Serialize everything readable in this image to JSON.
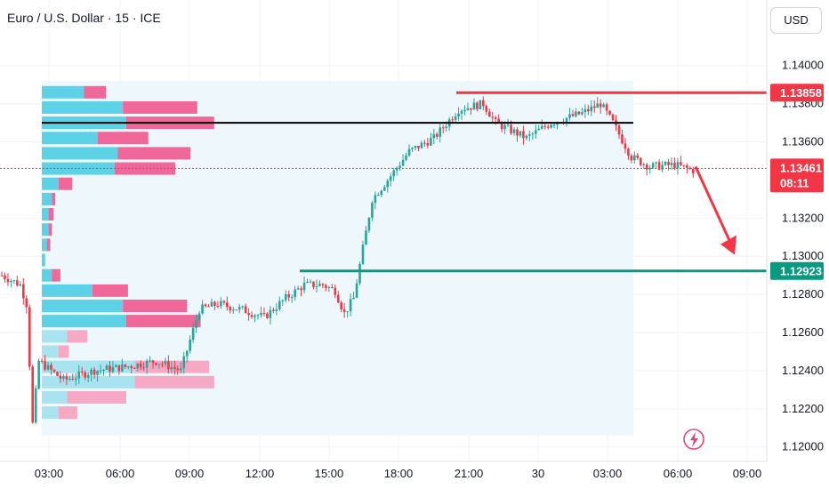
{
  "header": {
    "title": "Euro / U.S. Dollar · 15 · ICE",
    "currency": "USD"
  },
  "colors": {
    "up": "#26a69a",
    "down": "#f23645",
    "resistance": "#f23645",
    "support": "#089981",
    "pivot": "#000000",
    "arrow": "#f23645",
    "vp_up": "#5dd2e6",
    "vp_down": "#f0679a",
    "vp_up_light": "#a9e3ef",
    "vp_down_light": "#f6a9c4",
    "range_bg": "#eef8fc"
  },
  "icons": {
    "replay": "lightning-icon"
  },
  "chart_data": {
    "type": "candlestick",
    "symbol": "EURUSD",
    "timeframe": "15",
    "x_ticks": [
      "03:00",
      "06:00",
      "09:00",
      "12:00",
      "15:00",
      "18:00",
      "21:00",
      "30",
      "03:00",
      "06:00",
      "09:00"
    ],
    "y_ticks": [
      "1.14000",
      "1.13800",
      "1.13600",
      "1.13200",
      "1.13000",
      "1.12800",
      "1.12600",
      "1.12400",
      "1.12200",
      "1.12000"
    ],
    "ylim": [
      1.1198,
      1.1412
    ],
    "current_price": {
      "value": "1.13461",
      "countdown": "08:11"
    },
    "levels": [
      {
        "name": "resistance",
        "value": "1.13858",
        "price": 1.13858
      },
      {
        "name": "support",
        "value": "1.12923",
        "price": 1.12923
      },
      {
        "name": "pivot",
        "price": 1.137
      }
    ],
    "projection": {
      "from_price": 1.13461,
      "to_price": 1.1297
    },
    "volume_profile": {
      "price_range": [
        1.1209,
        1.1389
      ],
      "rows": [
        {
          "price": 1.1386,
          "up": 0.25,
          "down": 0.13
        },
        {
          "price": 1.1378,
          "up": 0.48,
          "down": 0.44
        },
        {
          "price": 1.137,
          "up": 0.5,
          "down": 0.52
        },
        {
          "price": 1.1362,
          "up": 0.33,
          "down": 0.3
        },
        {
          "price": 1.1354,
          "up": 0.45,
          "down": 0.43
        },
        {
          "price": 1.1346,
          "up": 0.43,
          "down": 0.36
        },
        {
          "price": 1.1338,
          "up": 0.1,
          "down": 0.08
        },
        {
          "price": 1.133,
          "up": 0.06,
          "down": 0.02
        },
        {
          "price": 1.1322,
          "up": 0.04,
          "down": 0.03
        },
        {
          "price": 1.1314,
          "up": 0.04,
          "down": 0.02
        },
        {
          "price": 1.1306,
          "up": 0.03,
          "down": 0.02
        },
        {
          "price": 1.1298,
          "up": 0.02,
          "down": 0.0
        },
        {
          "price": 1.129,
          "up": 0.06,
          "down": 0.05
        },
        {
          "price": 1.1282,
          "up": 0.3,
          "down": 0.21
        },
        {
          "price": 1.1274,
          "up": 0.48,
          "down": 0.38
        },
        {
          "price": 1.1266,
          "up": 0.5,
          "down": 0.44
        },
        {
          "price": 1.1258,
          "up": 0.15,
          "down": 0.12
        },
        {
          "price": 1.125,
          "up": 0.1,
          "down": 0.06
        },
        {
          "price": 1.1242,
          "up": 0.55,
          "down": 0.44
        },
        {
          "price": 1.1234,
          "up": 0.55,
          "down": 0.47
        },
        {
          "price": 1.1226,
          "up": 0.15,
          "down": 0.35
        },
        {
          "price": 1.1218,
          "up": 0.1,
          "down": 0.11
        }
      ]
    },
    "candle_path": [
      [
        0,
        1.129
      ],
      [
        6,
        1.1285
      ],
      [
        8,
        1.1275
      ],
      [
        10,
        1.1212
      ],
      [
        12,
        1.1245
      ],
      [
        20,
        1.1235
      ],
      [
        30,
        1.124
      ],
      [
        40,
        1.1242
      ],
      [
        50,
        1.1245
      ],
      [
        58,
        1.124
      ],
      [
        64,
        1.1272
      ],
      [
        70,
        1.1275
      ],
      [
        78,
        1.1272
      ],
      [
        85,
        1.1268
      ],
      [
        92,
        1.1278
      ],
      [
        98,
        1.1285
      ],
      [
        104,
        1.1285
      ],
      [
        108,
        1.1282
      ],
      [
        111,
        1.127
      ],
      [
        114,
        1.1278
      ],
      [
        120,
        1.133
      ],
      [
        125,
        1.134
      ],
      [
        132,
        1.1355
      ],
      [
        140,
        1.1362
      ],
      [
        148,
        1.1377
      ],
      [
        156,
        1.138
      ],
      [
        160,
        1.137
      ],
      [
        170,
        1.1362
      ],
      [
        178,
        1.137
      ],
      [
        188,
        1.1375
      ],
      [
        194,
        1.138
      ],
      [
        198,
        1.137
      ],
      [
        204,
        1.1352
      ],
      [
        210,
        1.1347
      ],
      [
        218,
        1.1348
      ],
      [
        224,
        1.1345
      ]
    ]
  }
}
